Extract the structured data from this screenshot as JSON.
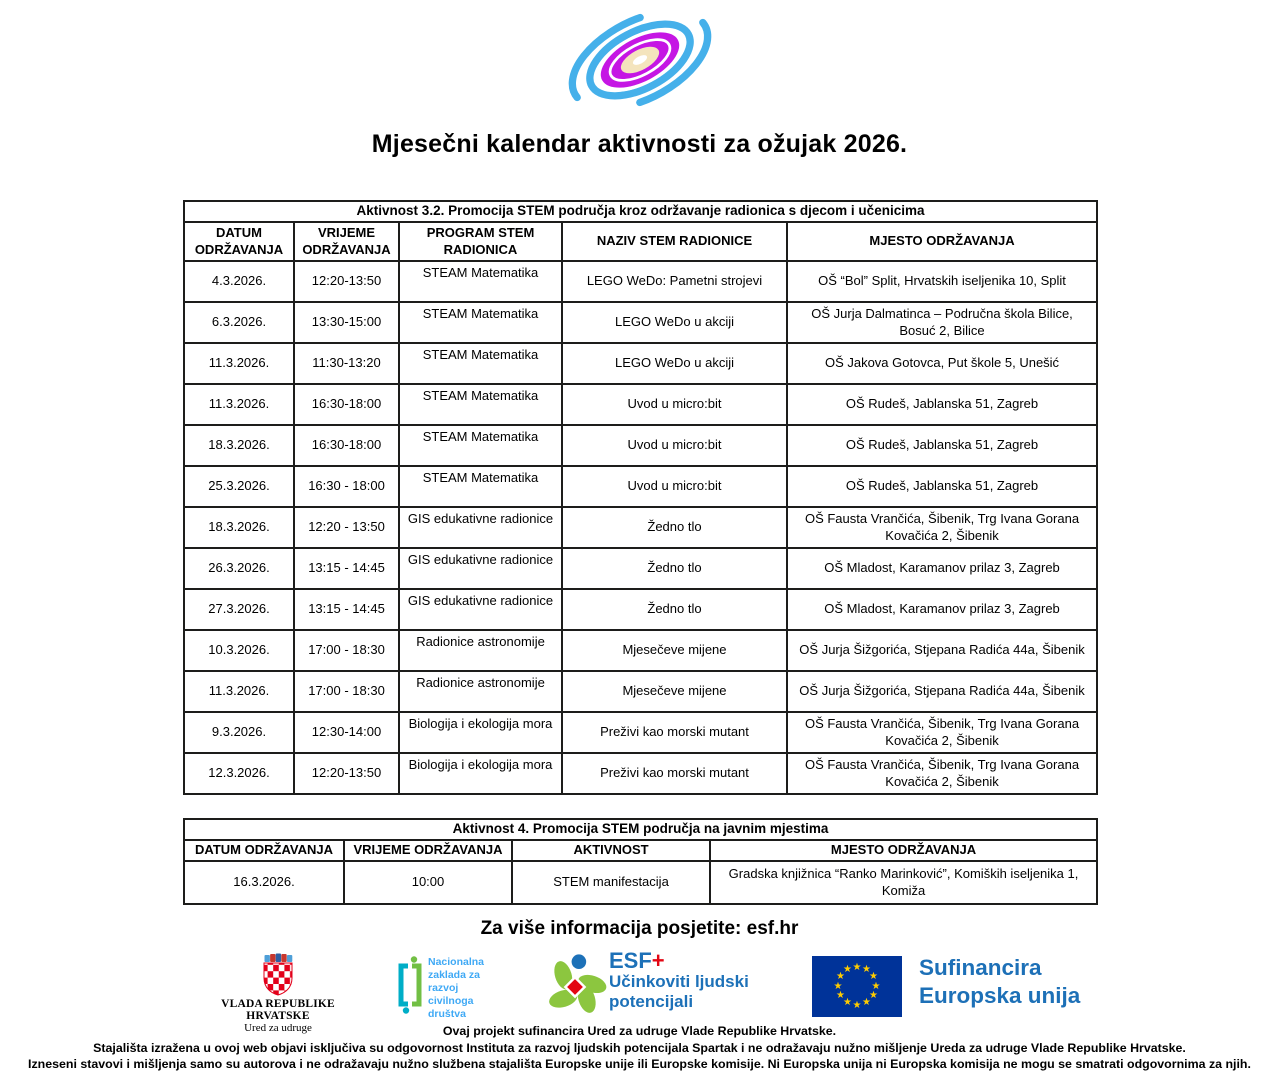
{
  "page": {
    "title": "Mjesečni kalendar aktivnosti za ožujak 2026.",
    "more_info": "Za više informacija posjetite: esf.hr"
  },
  "table1": {
    "caption": "Aktivnost 3.2. Promocija STEM područja kroz održavanje radionica s djecom i učenicima",
    "headers": [
      "DATUM ODRŽAVANJA",
      "VRIJEME ODRŽAVANJA",
      "PROGRAM STEM RADIONICA",
      "NAZIV STEM RADIONICE",
      "MJESTO ODRŽAVANJA"
    ],
    "rows": [
      [
        "4.3.2026.",
        "12:20-13:50",
        "STEAM Matematika",
        "LEGO WeDo: Pametni strojevi",
        "OŠ “Bol” Split, Hrvatskih iseljenika 10, Split"
      ],
      [
        "6.3.2026.",
        "13:30-15:00",
        "STEAM Matematika",
        "LEGO WeDo u akciji",
        "OŠ Jurja Dalmatinca – Područna škola Bilice, Bosuć 2, Bilice"
      ],
      [
        "11.3.2026.",
        "11:30-13:20",
        "STEAM Matematika",
        "LEGO WeDo u akciji",
        "OŠ Jakova Gotovca, Put škole 5, Unešić"
      ],
      [
        "11.3.2026.",
        "16:30-18:00",
        "STEAM Matematika",
        "Uvod u micro:bit",
        "OŠ Rudeš, Jablanska 51, Zagreb"
      ],
      [
        "18.3.2026.",
        "16:30-18:00",
        "STEAM Matematika",
        "Uvod u micro:bit",
        "OŠ Rudeš, Jablanska 51, Zagreb"
      ],
      [
        "25.3.2026.",
        "16:30 - 18:00",
        "STEAM Matematika",
        "Uvod u micro:bit",
        "OŠ Rudeš, Jablanska 51, Zagreb"
      ],
      [
        "18.3.2026.",
        "12:20 - 13:50",
        "GIS edukativne radionice",
        "Žedno tlo",
        "OŠ Fausta Vrančića, Šibenik, Trg Ivana Gorana Kovačića 2, Šibenik"
      ],
      [
        "26.3.2026.",
        "13:15 - 14:45",
        "GIS edukativne radionice",
        "Žedno tlo",
        "OŠ Mladost, Karamanov prilaz 3, Zagreb"
      ],
      [
        "27.3.2026.",
        "13:15 - 14:45",
        "GIS edukativne radionice",
        "Žedno tlo",
        "OŠ Mladost, Karamanov prilaz 3, Zagreb"
      ],
      [
        "10.3.2026.",
        "17:00 - 18:30",
        "Radionice astronomije",
        "Mjesečeve mijene",
        "OŠ Jurja Šižgorića, Stjepana Radića 44a, Šibenik"
      ],
      [
        "11.3.2026.",
        "17:00 - 18:30",
        "Radionice astronomije",
        "Mjesečeve mijene",
        "OŠ Jurja Šižgorića, Stjepana Radića 44a, Šibenik"
      ],
      [
        "9.3.2026.",
        "12:30-14:00",
        "Biologija i ekologija mora",
        "Preživi kao morski mutant",
        "OŠ Fausta Vrančića, Šibenik, Trg Ivana Gorana Kovačića 2, Šibenik"
      ],
      [
        "12.3.2026.",
        "12:20-13:50",
        "Biologija i ekologija mora",
        "Preživi kao morski mutant",
        "OŠ Fausta Vrančića, Šibenik, Trg Ivana Gorana Kovačića 2, Šibenik"
      ]
    ]
  },
  "table2": {
    "caption": "Aktivnost 4. Promocija STEM područja na javnim mjestima",
    "headers": [
      "DATUM ODRŽAVANJA",
      "VRIJEME ODRŽAVANJA",
      "AKTIVNOST",
      "MJESTO ODRŽAVANJA"
    ],
    "rows": [
      [
        "16.3.2026.",
        "10:00",
        "STEM manifestacija",
        "Gradska knjižnica “Ranko Marinković”, Komiških iseljenika 1, Komiža"
      ]
    ]
  },
  "logos": {
    "vlada": {
      "line1": "VLADA REPUBLIKE HRVATSKE",
      "line2": "Ured za udruge"
    },
    "zaklada": {
      "text": "Nacionalna zaklada za razvoj civilnoga društva"
    },
    "esf": {
      "title": "ESF",
      "plus": "+",
      "subtitle": "Učinkoviti ljudski potencijali"
    },
    "eu": {
      "line1": "Sufinancira",
      "line2": "Europska unija",
      "star_glyph": "★",
      "star_count": 12
    }
  },
  "footer": {
    "credit": "Ovaj projekt sufinancira Ured za udruge Vlade Republike Hrvatske.",
    "disclaimer1": "Stajališta izražena u ovoj web objavi isključiva su odgovornost Instituta za razvoj ljudskih potencijala Spartak i ne odražavaju nužno mišljenje Ureda za udruge Vlade Republike Hrvatske.",
    "disclaimer2": "Izneseni stavovi i mišljenja samo su autorova i ne odražavaju nužno službena stajališta Europske unije ili Europske komisije. Ni Europska unija ni Europska komisija ne mogu se smatrati odgovornima za njih."
  },
  "colors": {
    "galaxy_blue": "#45B0EA",
    "galaxy_magenta": "#C516E4",
    "galaxy_cream": "#F4E4BD",
    "eu_flag_blue": "#003399",
    "eu_star_yellow": "#FFCC00",
    "eu_text_blue": "#1D70B7",
    "esf_blue": "#1D71B8",
    "esf_red": "#E30613",
    "esf_green": "#8CC63F",
    "zaklada_text_blue": "#3FA9F5",
    "bracket_teal": "#00AEC7",
    "bracket_green": "#72BF44",
    "coat_red": "#E2001A",
    "table_border": "#1d1d1b"
  }
}
